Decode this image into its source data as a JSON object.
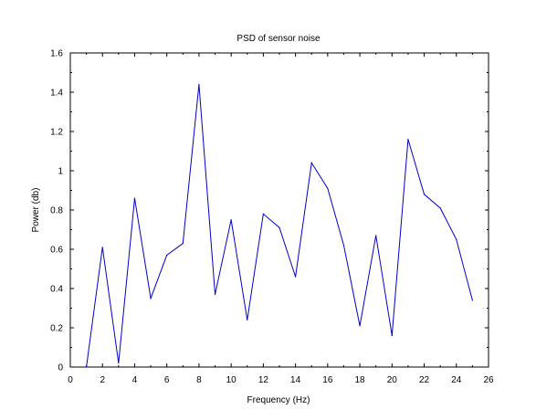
{
  "chart_data": {
    "type": "line",
    "title": "PSD of sensor noise",
    "xlabel": "Frequency (Hz)",
    "ylabel": "Power (db)",
    "xlim": [
      0,
      26
    ],
    "ylim": [
      0,
      1.6
    ],
    "x_ticks": [
      0,
      2,
      4,
      6,
      8,
      10,
      12,
      14,
      16,
      18,
      20,
      22,
      24,
      26
    ],
    "y_ticks": [
      0,
      0.2,
      0.4,
      0.6,
      0.8,
      1,
      1.2,
      1.4,
      1.6
    ],
    "x_tick_labels": [
      "0",
      "2",
      "4",
      "6",
      "8",
      "10",
      "12",
      "14",
      "16",
      "18",
      "20",
      "22",
      "24",
      "26"
    ],
    "y_tick_labels": [
      "0",
      "0.2",
      "0.4",
      "0.6",
      "0.8",
      "1",
      "1.2",
      "1.4",
      "1.6"
    ],
    "grid": false,
    "line_color": "#0000cc",
    "series": [
      {
        "x": [
          1,
          2,
          3,
          4,
          5,
          6,
          7,
          8,
          9,
          10,
          11,
          12,
          13,
          14,
          15,
          16,
          17,
          18,
          19,
          20,
          21,
          22,
          23,
          24,
          25
        ],
        "values": [
          0.0,
          0.61,
          0.02,
          0.86,
          0.35,
          0.57,
          0.63,
          1.44,
          0.37,
          0.75,
          0.24,
          0.78,
          0.71,
          0.46,
          1.04,
          0.91,
          0.62,
          0.21,
          0.67,
          0.16,
          1.16,
          0.88,
          0.81,
          0.65,
          0.34
        ]
      }
    ]
  }
}
